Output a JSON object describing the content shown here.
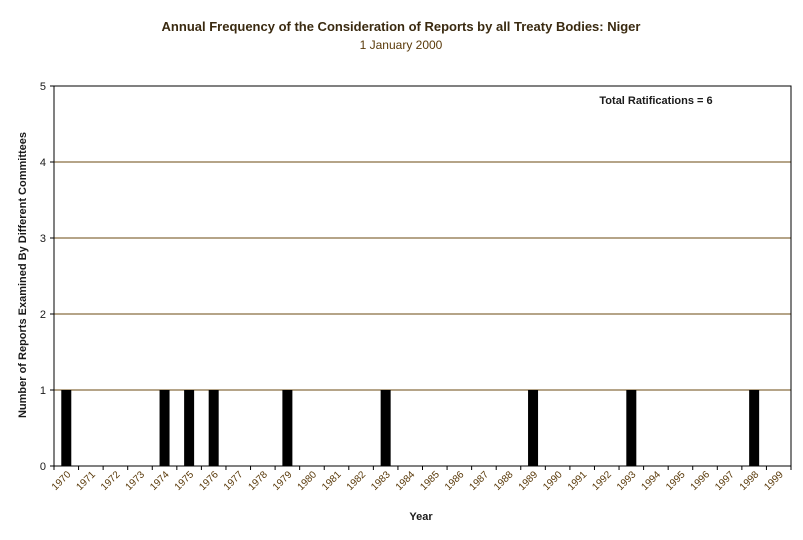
{
  "chart_data": {
    "type": "bar",
    "title": "Annual Frequency of the Consideration of Reports by all Treaty Bodies: Niger",
    "subtitle": "1 January 2000",
    "xlabel": "Year",
    "ylabel": "Number of Reports Examined By Different Committees",
    "ylim": [
      0,
      5
    ],
    "yticks": [
      "0",
      "1",
      "2",
      "3",
      "4",
      "5"
    ],
    "grid": true,
    "annotation": "Total Ratifications = 6",
    "categories": [
      "1970",
      "1971",
      "1972",
      "1973",
      "1974",
      "1975",
      "1976",
      "1977",
      "1978",
      "1979",
      "1980",
      "1981",
      "1982",
      "1983",
      "1984",
      "1985",
      "1986",
      "1987",
      "1988",
      "1989",
      "1990",
      "1991",
      "1992",
      "1993",
      "1994",
      "1995",
      "1996",
      "1997",
      "1998",
      "1999"
    ],
    "values": [
      1,
      0,
      0,
      0,
      1,
      1,
      1,
      0,
      0,
      1,
      0,
      0,
      0,
      1,
      0,
      0,
      0,
      0,
      0,
      1,
      0,
      0,
      0,
      1,
      0,
      0,
      0,
      0,
      1,
      0
    ],
    "colors": {
      "bar": "#000000",
      "grid": "#6b4a10",
      "axis": "#000000",
      "tick_text": "#5a3a0a"
    }
  }
}
